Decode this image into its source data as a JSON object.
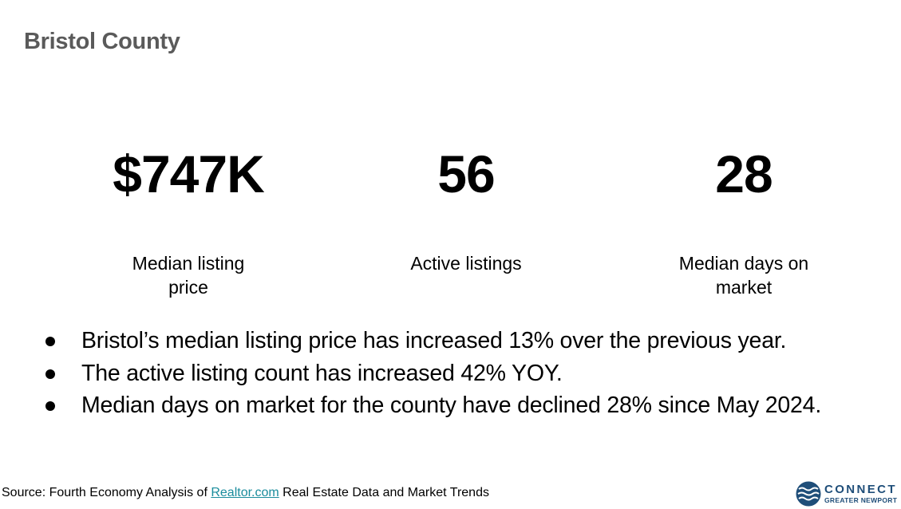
{
  "title": "Bristol County",
  "stats": [
    {
      "value": "$747K",
      "label_lines": [
        "Median listing",
        "price"
      ]
    },
    {
      "value": "56",
      "label_lines": [
        "Active listings"
      ]
    },
    {
      "value": "28",
      "label_lines": [
        "Median days on",
        "market"
      ]
    }
  ],
  "bullets": [
    "Bristol’s median listing price has increased 13% over the previous year.",
    "The active listing count has increased 42% YOY.",
    "Median days on market for the county have declined 28% since May 2024."
  ],
  "source": {
    "prefix": "Source: Fourth Economy Analysis of ",
    "link_text": "Realtor.com",
    "suffix": " Real Estate Data and Market Trends"
  },
  "logo": {
    "icon": "waves-icon",
    "line1": "CONNECT",
    "line2": "GREATER NEWPORT",
    "color": "#1f4e79"
  },
  "colors": {
    "title": "#5a5a5a",
    "link": "#1a8c9c"
  }
}
